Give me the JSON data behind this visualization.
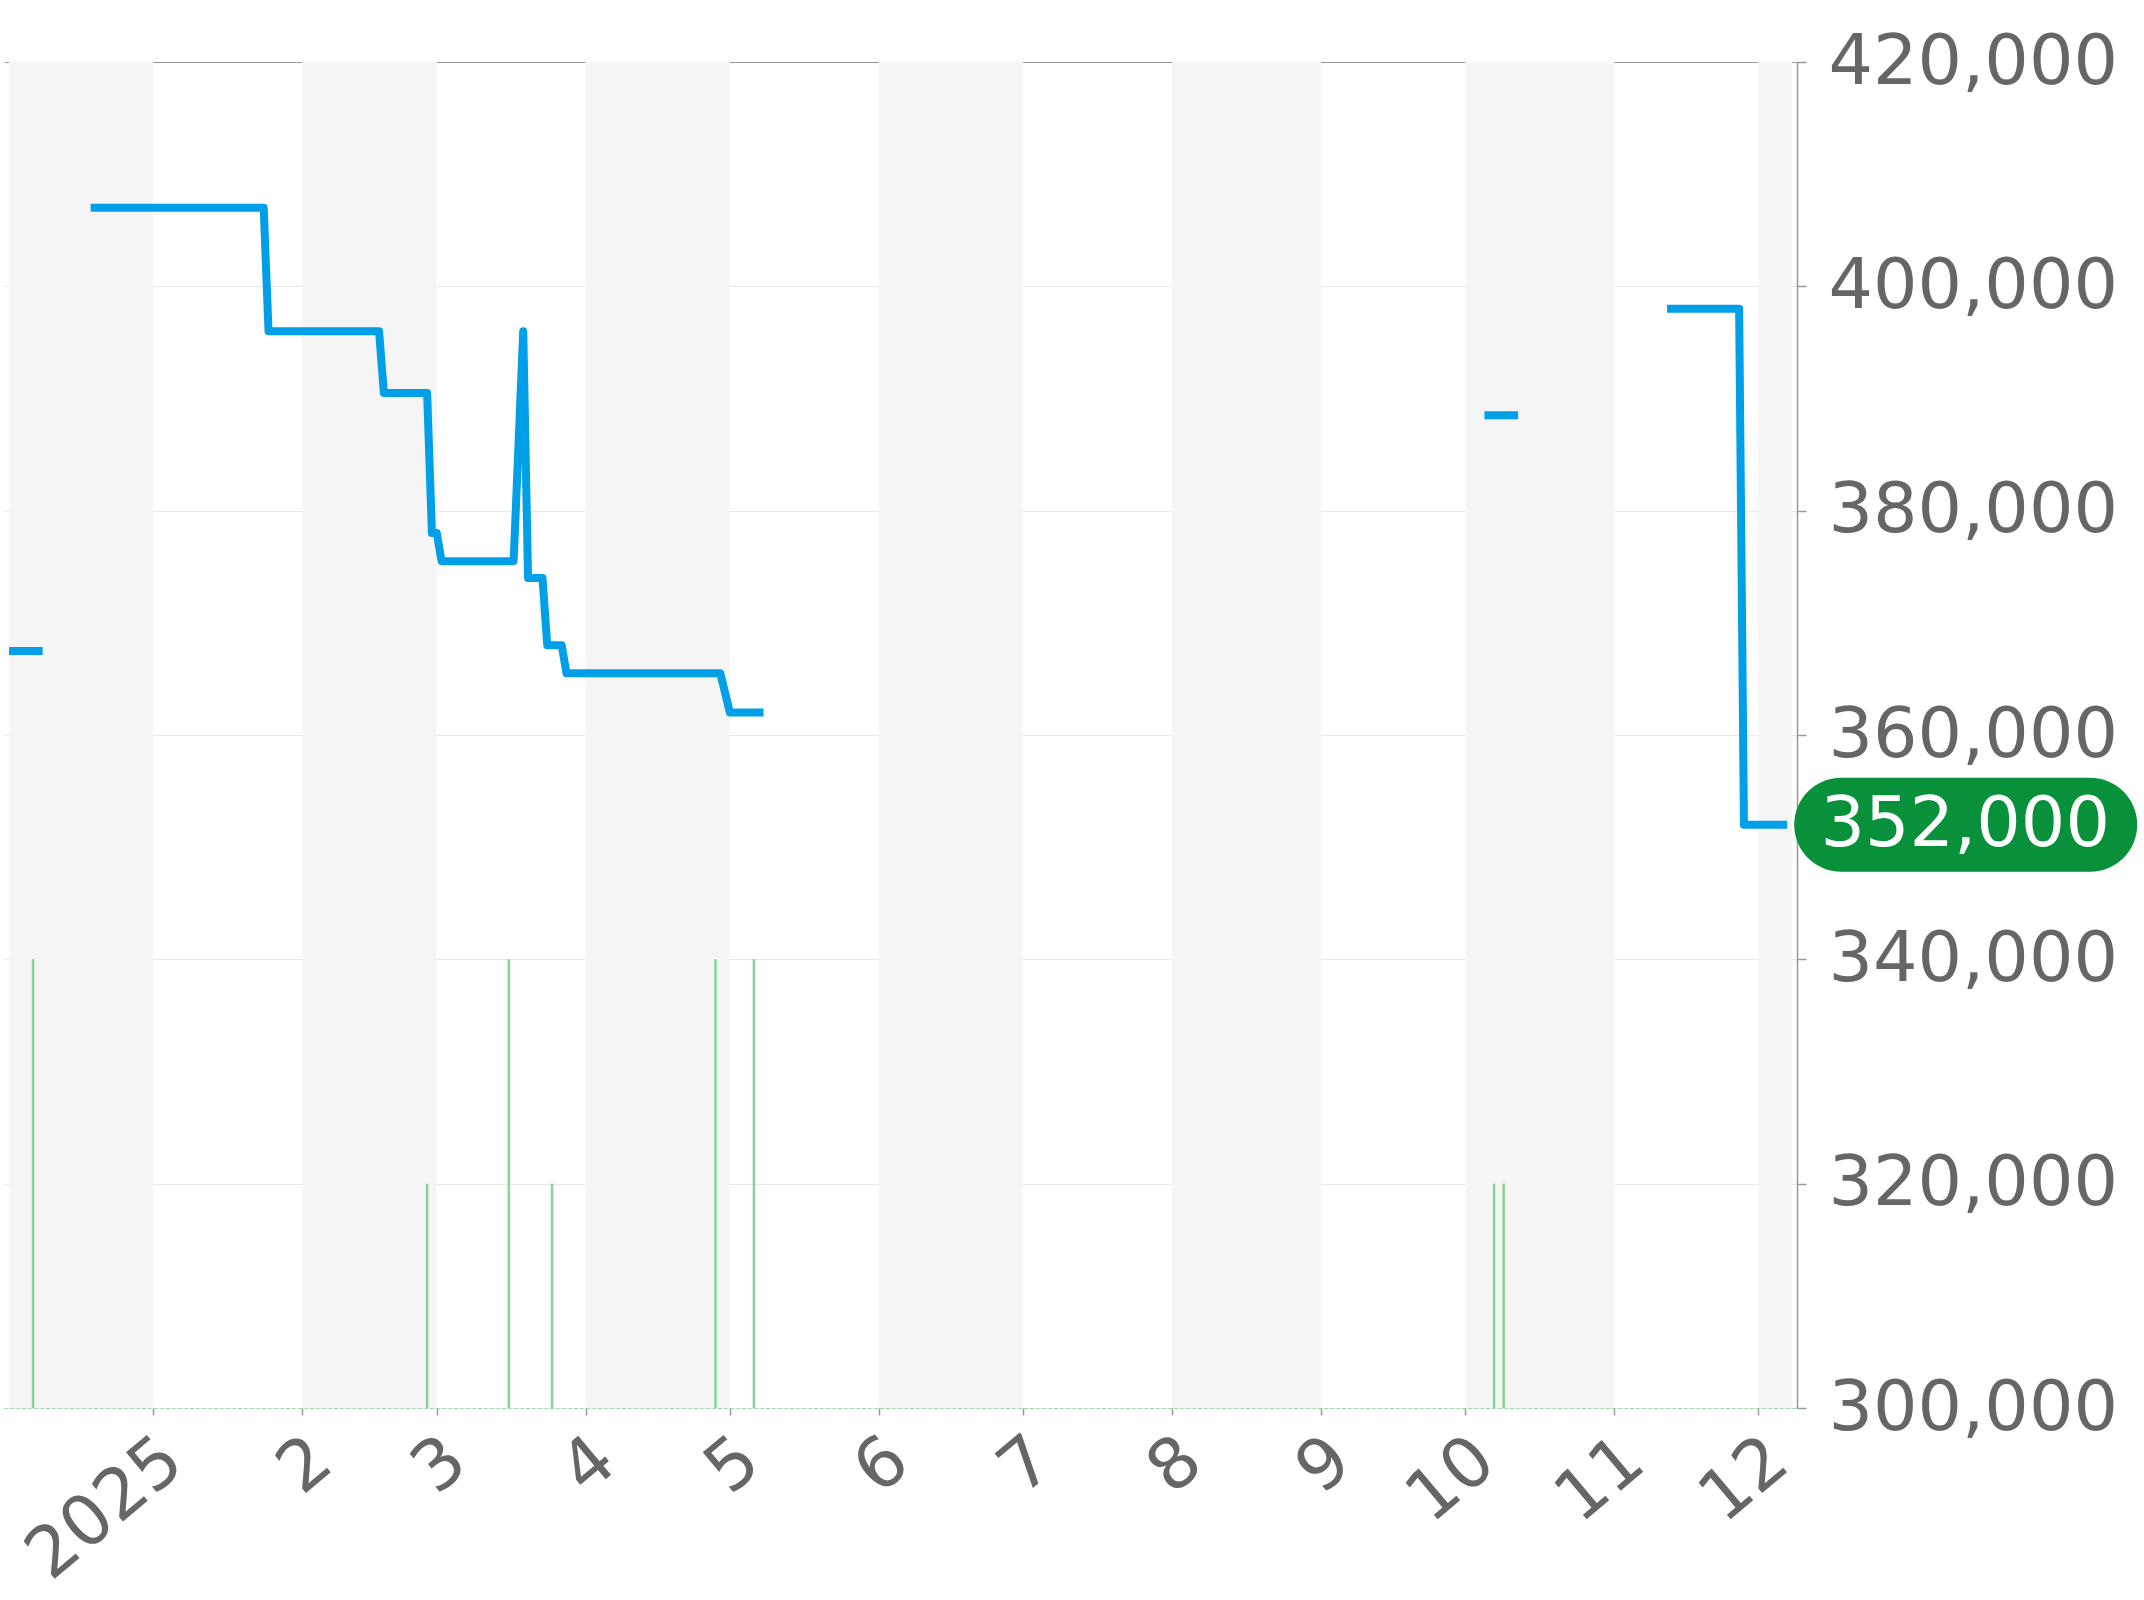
{
  "chart_data": {
    "type": "line",
    "series": [
      {
        "color": "#009fe8",
        "x": [
          "2024-12-02",
          "2024-12-09",
          "2024-12-14",
          "2024-12-19",
          "2025-01-24",
          "2025-01-25",
          "2025-02-17",
          "2025-02-18",
          "2025-02-27",
          "2025-02-28",
          "2025-03-01",
          "2025-03-02",
          "2025-03-17",
          "2025-03-19",
          "2025-03-20",
          "2025-03-23",
          "2025-03-24",
          "2025-03-27",
          "2025-03-28",
          "2025-04-29",
          "2025-05-01",
          "2025-05-08",
          "2025-07-01",
          "2025-10-05",
          "2025-10-12",
          "2025-10-25",
          "2025-11-12",
          "2025-11-27",
          "2025-11-28",
          "2025-12-07"
        ],
        "values": [
          367500,
          367500,
          null,
          407000,
          407000,
          396000,
          396000,
          390500,
          390500,
          378000,
          378000,
          375500,
          375500,
          396000,
          374000,
          374000,
          368000,
          368000,
          365500,
          365500,
          362000,
          362000,
          null,
          388500,
          388500,
          null,
          398000,
          398000,
          352000,
          352000
        ]
      },
      {
        "type": "bar",
        "color": "#86d496",
        "x": [
          "2024-12-07",
          "2025-02-27",
          "2025-03-16",
          "2025-03-25",
          "2025-04-28",
          "2025-05-06",
          "2025-10-07",
          "2025-10-09"
        ],
        "values": [
          340000,
          320000,
          340000,
          320000,
          340000,
          340000,
          320000,
          320000
        ]
      }
    ],
    "xlim": [
      "2024-12-02",
      "2025-12-08"
    ],
    "xticks": [
      {
        "value": "2025-01-01",
        "label": "2025"
      },
      {
        "value": "2025-02-01",
        "label": "2"
      },
      {
        "value": "2025-03-01",
        "label": "3"
      },
      {
        "value": "2025-04-01",
        "label": "4"
      },
      {
        "value": "2025-05-01",
        "label": "5"
      },
      {
        "value": "2025-06-01",
        "label": "6"
      },
      {
        "value": "2025-07-01",
        "label": "7"
      },
      {
        "value": "2025-08-01",
        "label": "8"
      },
      {
        "value": "2025-09-01",
        "label": "9"
      },
      {
        "value": "2025-10-01",
        "label": "10"
      },
      {
        "value": "2025-11-01",
        "label": "11"
      },
      {
        "value": "2025-12-01",
        "label": "12"
      }
    ],
    "ylim": [
      300000,
      420000
    ],
    "yticks": [
      {
        "value": 300000,
        "label": "300,000"
      },
      {
        "value": 320000,
        "label": "320,000"
      },
      {
        "value": 340000,
        "label": "340,000"
      },
      {
        "value": 360000,
        "label": "360,000"
      },
      {
        "value": 380000,
        "label": "380,000"
      },
      {
        "value": 400000,
        "label": "400,000"
      },
      {
        "value": 420000,
        "label": "420,000"
      }
    ],
    "grid": "y",
    "bands": [
      {
        "axis": "x",
        "from": "2024-12-02",
        "to": "2025-01-01",
        "color": "#f5f5f5"
      },
      {
        "axis": "x",
        "from": "2025-02-01",
        "to": "2025-03-01",
        "color": "#f5f5f5"
      },
      {
        "axis": "x",
        "from": "2025-04-01",
        "to": "2025-05-01",
        "color": "#f5f5f5"
      },
      {
        "axis": "x",
        "from": "2025-06-01",
        "to": "2025-07-01",
        "color": "#f5f5f5"
      },
      {
        "axis": "x",
        "from": "2025-08-01",
        "to": "2025-09-01",
        "color": "#f5f5f5"
      },
      {
        "axis": "x",
        "from": "2025-10-01",
        "to": "2025-11-01",
        "color": "#f5f5f5"
      },
      {
        "axis": "x",
        "from": "2025-12-01",
        "to": "2025-12-08",
        "color": "#f5f5f5"
      }
    ],
    "annotations": [
      {
        "text": "352,000",
        "x": "2025-12-07",
        "y": 352000
      }
    ]
  }
}
